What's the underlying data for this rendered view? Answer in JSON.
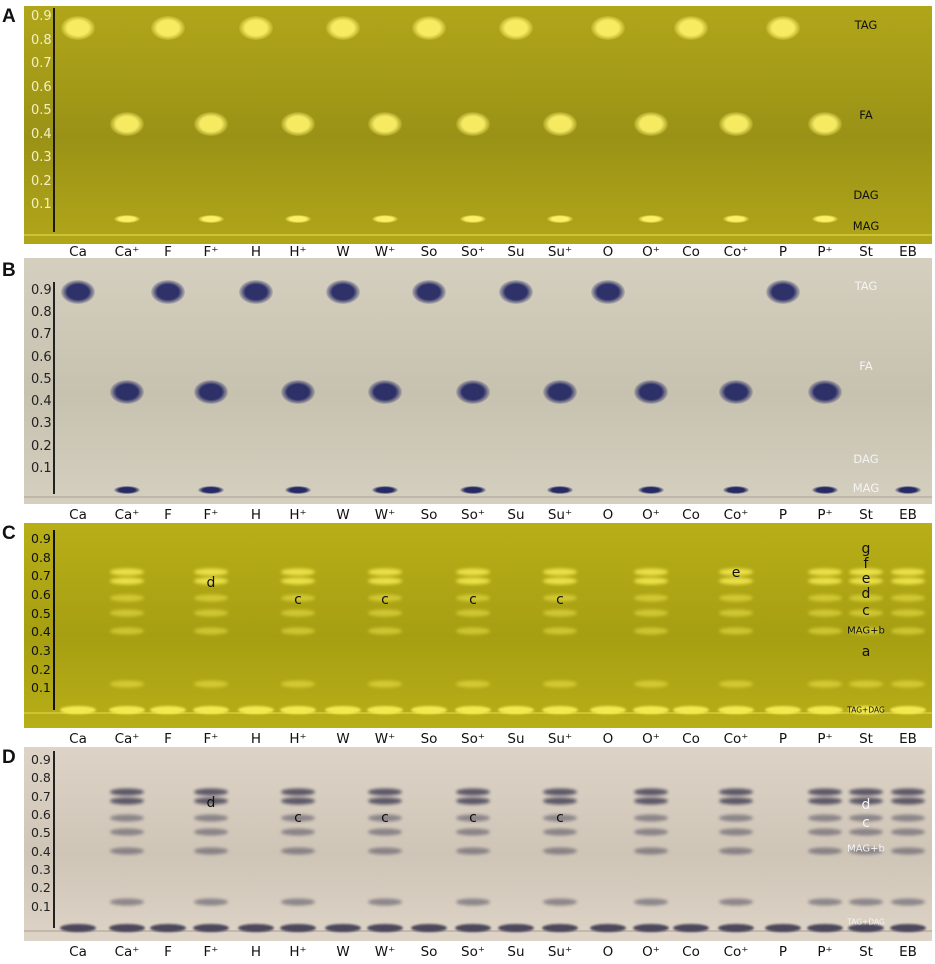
{
  "rf_ticks": [
    "0.9",
    "0.8",
    "0.7",
    "0.6",
    "0.5",
    "0.4",
    "0.3",
    "0.2",
    "0.1"
  ],
  "lanes_AB": [
    "Ca",
    "Ca⁺",
    "F",
    "F⁺",
    "H",
    "H⁺",
    "W",
    "W⁺",
    "So",
    "So⁺",
    "Su",
    "Su⁺",
    "O",
    "O⁺",
    "Co",
    "Co⁺",
    "P",
    "P⁺",
    "St",
    "EB"
  ],
  "lanes_CD": [
    "Ca",
    "Ca⁺",
    "F",
    "F⁺",
    "H",
    "H⁺",
    "W",
    "W⁺",
    "So",
    "So⁺",
    "Su",
    "Su⁺",
    "O",
    "O⁺",
    "Co",
    "Co⁺",
    "P",
    "P⁺",
    "St",
    "EB"
  ],
  "panels": [
    {
      "letter": "A",
      "bg": "#9a9216",
      "bg2": "#b1a61a",
      "spot": "#fff36a",
      "tick_color": "#f4f0c0",
      "line_color": "#1e1a08",
      "annotations": [
        {
          "text": "TAG",
          "lane": 18,
          "rf": 0.86,
          "color": "#111111"
        },
        {
          "text": "FA",
          "lane": 18,
          "rf": 0.48,
          "color": "#111111"
        },
        {
          "text": "DAG",
          "lane": 18,
          "rf": 0.14,
          "color": "#111111"
        },
        {
          "text": "MAG",
          "lane": 18,
          "rf": 0.01,
          "color": "#111111"
        }
      ],
      "lane_rf_intensity": [
        {
          "rf": 0.85,
          "lanes": [
            0,
            2,
            4,
            6,
            8,
            10,
            12,
            14,
            16
          ],
          "size": "big"
        },
        {
          "rf": 0.44,
          "lanes": [
            1,
            3,
            5,
            7,
            9,
            11,
            13,
            15,
            17
          ],
          "size": "big"
        },
        {
          "rf": 0.04,
          "lanes": [
            1,
            3,
            5,
            7,
            9,
            11,
            13,
            15,
            17
          ],
          "size": "small"
        }
      ]
    },
    {
      "letter": "B",
      "bg": "#c7c1b0",
      "bg2": "#d5cfbf",
      "spot": "#1c2160",
      "tick_color": "#222222",
      "line_color": "#222222",
      "annotations": [
        {
          "text": "TAG",
          "lane": 18,
          "rf": 0.92,
          "color": "#f4f4f4"
        },
        {
          "text": "FA",
          "lane": 18,
          "rf": 0.56,
          "color": "#f4f4f4"
        },
        {
          "text": "DAG",
          "lane": 18,
          "rf": 0.14,
          "color": "#f4f4f4"
        },
        {
          "text": "MAG",
          "lane": 18,
          "rf": 0.01,
          "color": "#f4f4f4"
        }
      ],
      "lane_rf_intensity": [
        {
          "rf": 0.89,
          "lanes": [
            0,
            2,
            4,
            6,
            8,
            10,
            12,
            16
          ],
          "size": "big"
        },
        {
          "rf": 0.44,
          "lanes": [
            1,
            3,
            5,
            7,
            9,
            11,
            13,
            15,
            17
          ],
          "size": "big"
        },
        {
          "rf": 0.0,
          "lanes": [
            1,
            3,
            5,
            7,
            9,
            11,
            13,
            15,
            17,
            19
          ],
          "size": "small"
        }
      ]
    },
    {
      "letter": "C",
      "bg": "#a69f12",
      "bg2": "#b8ae18",
      "spot": "#fff35a",
      "tick_color": "#111111",
      "line_color": "#111111",
      "annotations": [
        {
          "text": "d",
          "lane": 3,
          "rf": 0.66,
          "color": "#111111"
        },
        {
          "text": "c",
          "lane": 5,
          "rf": 0.57,
          "color": "#111111"
        },
        {
          "text": "c",
          "lane": 7,
          "rf": 0.57,
          "color": "#111111"
        },
        {
          "text": "c",
          "lane": 9,
          "rf": 0.57,
          "color": "#111111"
        },
        {
          "text": "c",
          "lane": 11,
          "rf": 0.57,
          "color": "#111111"
        },
        {
          "text": "e",
          "lane": 15,
          "rf": 0.71,
          "color": "#111111"
        },
        {
          "text": "g",
          "lane": 18,
          "rf": 0.84,
          "color": "#111111"
        },
        {
          "text": "f",
          "lane": 18,
          "rf": 0.76,
          "color": "#111111"
        },
        {
          "text": "e",
          "lane": 18,
          "rf": 0.68,
          "color": "#111111"
        },
        {
          "text": "d",
          "lane": 18,
          "rf": 0.6,
          "color": "#111111"
        },
        {
          "text": "c",
          "lane": 18,
          "rf": 0.51,
          "color": "#111111"
        },
        {
          "text": "MAG+b",
          "lane": 18,
          "rf": 0.4,
          "color": "#111111"
        },
        {
          "text": "a",
          "lane": 18,
          "rf": 0.29,
          "color": "#111111"
        },
        {
          "text": "TAG+DAG",
          "lane": 18,
          "rf": -0.02,
          "color": "#111111"
        }
      ]
    },
    {
      "letter": "D",
      "bg": "#cfc5b7",
      "bg2": "#ddd3c6",
      "spot": "#33304a",
      "tick_color": "#222222",
      "line_color": "#222222",
      "annotations": [
        {
          "text": "d",
          "lane": 3,
          "rf": 0.66,
          "color": "#111111"
        },
        {
          "text": "c",
          "lane": 5,
          "rf": 0.58,
          "color": "#111111"
        },
        {
          "text": "c",
          "lane": 7,
          "rf": 0.58,
          "color": "#111111"
        },
        {
          "text": "c",
          "lane": 9,
          "rf": 0.58,
          "color": "#111111"
        },
        {
          "text": "c",
          "lane": 11,
          "rf": 0.58,
          "color": "#111111"
        },
        {
          "text": "d",
          "lane": 18,
          "rf": 0.65,
          "color": "#f4f4f4"
        },
        {
          "text": "c",
          "lane": 18,
          "rf": 0.55,
          "color": "#f4f4f4"
        },
        {
          "text": "MAG+b",
          "lane": 18,
          "rf": 0.41,
          "color": "#f4f4f4"
        },
        {
          "text": "TAG+DAG",
          "lane": 18,
          "rf": 0.01,
          "color": "#f4f4f4"
        }
      ]
    }
  ]
}
